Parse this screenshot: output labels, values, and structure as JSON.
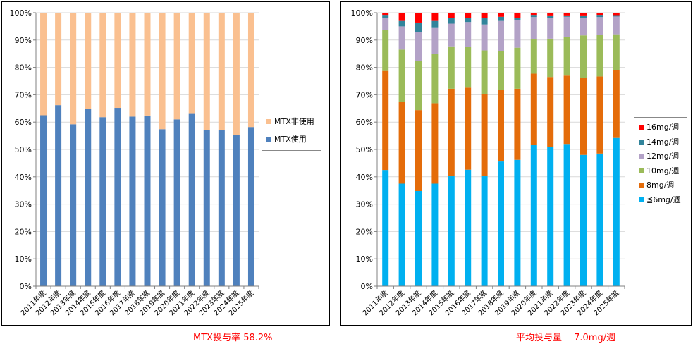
{
  "charts": [
    {
      "type": "bar",
      "stacked": true,
      "categories": [
        "2011年度",
        "2012年度",
        "2013年度",
        "2014年度",
        "2015年度",
        "2016年度",
        "2017年度",
        "2018年度",
        "2019年度",
        "2020年度",
        "2021年度",
        "2022年度",
        "2023年度",
        "2024年度",
        "2025年度"
      ],
      "series": [
        {
          "name": "MTX使用",
          "color": "#4f81bd",
          "values": [
            62.5,
            66.2,
            59.2,
            64.8,
            61.8,
            65.2,
            62.0,
            62.4,
            57.4,
            61.0,
            63.0,
            57.2,
            57.2,
            55.2,
            58.2
          ]
        },
        {
          "name": "MTX非使用",
          "color": "#fac090",
          "values": [
            37.5,
            33.8,
            40.8,
            35.2,
            38.2,
            34.8,
            38.0,
            37.6,
            42.6,
            39.0,
            37.0,
            42.8,
            42.8,
            44.8,
            41.8
          ]
        }
      ],
      "yticks": [
        "0%",
        "10%",
        "20%",
        "30%",
        "40%",
        "50%",
        "60%",
        "70%",
        "80%",
        "90%",
        "100%"
      ],
      "ylim": [
        0,
        100
      ],
      "legend_position": "right",
      "caption": "MTX投与率 58.2%"
    },
    {
      "type": "bar",
      "stacked": true,
      "categories": [
        "2011年度",
        "2012年度",
        "2013年度",
        "2014年度",
        "2015年度",
        "2016年度",
        "2017年度",
        "2018年度",
        "2019年度",
        "2020年度",
        "2021年度",
        "2022年度",
        "2023年度",
        "2024年度",
        "2025年度"
      ],
      "series": [
        {
          "name": "≦6mg/週",
          "color": "#00b0f0",
          "values": [
            42.5,
            37.5,
            34.8,
            37.5,
            40.2,
            42.6,
            40.2,
            45.6,
            46.2,
            51.8,
            51.0,
            52.0,
            48.0,
            48.5,
            54.2
          ]
        },
        {
          "name": "8mg/週",
          "color": "#e46c0a",
          "values": [
            36.2,
            30.0,
            29.6,
            29.4,
            32.0,
            30.0,
            30.0,
            26.2,
            26.0,
            25.9,
            25.5,
            25.0,
            28.2,
            28.2,
            24.9
          ]
        },
        {
          "name": "10mg/週",
          "color": "#9bbb59",
          "values": [
            15.0,
            19.0,
            18.0,
            18.0,
            15.5,
            15.0,
            16.0,
            14.2,
            15.0,
            12.5,
            14.0,
            14.0,
            15.5,
            15.2,
            13.0
          ]
        },
        {
          "name": "12mg/週",
          "color": "#b3a2c7",
          "values": [
            4.5,
            8.5,
            10.5,
            9.5,
            8.3,
            9.0,
            9.5,
            11.0,
            10.0,
            8.2,
            7.5,
            7.5,
            6.5,
            6.5,
            6.5
          ]
        },
        {
          "name": "14mg/週",
          "color": "#31849b",
          "values": [
            1.0,
            2.0,
            3.5,
            2.6,
            2.0,
            1.4,
            2.3,
            1.5,
            0.8,
            0.8,
            1.0,
            0.5,
            0.8,
            0.8,
            0.5
          ]
        },
        {
          "name": "16mg/週",
          "color": "#ff0000",
          "values": [
            0.8,
            3.0,
            3.6,
            3.0,
            2.0,
            2.0,
            2.0,
            1.5,
            2.0,
            0.8,
            1.0,
            1.0,
            1.0,
            0.8,
            0.9
          ]
        }
      ],
      "yticks": [
        "0%",
        "10%",
        "20%",
        "30%",
        "40%",
        "50%",
        "60%",
        "70%",
        "80%",
        "90%",
        "100%"
      ],
      "ylim": [
        0,
        100
      ],
      "legend_position": "right",
      "caption": "平均投与量　 7.0mg/週"
    }
  ]
}
